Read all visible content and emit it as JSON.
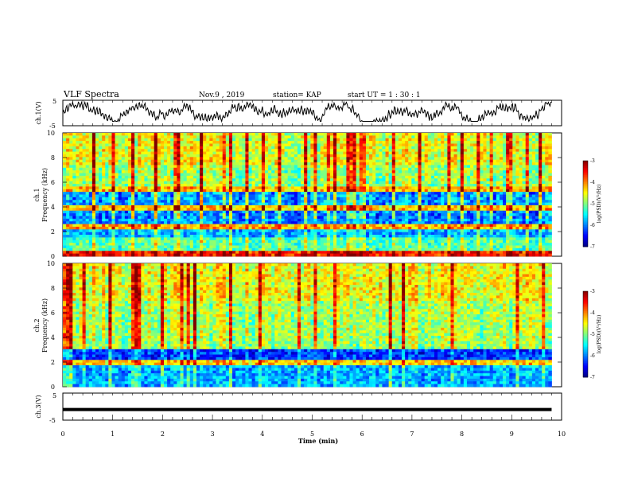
{
  "header": {
    "title": "VLF Spectra",
    "date": "Nov.9  , 2019",
    "station": "station= KAP",
    "start": "start  UT =   1 : 30 : 1"
  },
  "chart_data": [
    {
      "type": "line",
      "name": "ch1-waveform",
      "ylabel": "ch.1(V)",
      "ylim": [
        -5,
        5
      ],
      "yticks": [
        "5",
        "-5"
      ],
      "xlim": [
        0,
        9.8
      ],
      "description_level": "amplitude oscillating roughly between -3 and 4 V"
    },
    {
      "type": "heatmap",
      "name": "ch1-spectrogram",
      "ylabel_top": "ch.1",
      "ylabel": "Frequency  (kHz)",
      "ylim": [
        0,
        10
      ],
      "yticks": [
        "0",
        "2",
        "4",
        "6",
        "8",
        "10"
      ],
      "xlim": [
        0,
        9.8
      ],
      "colorbar": {
        "label": "log(PSD)(V²/Hz)",
        "range": [
          -7,
          -3
        ],
        "ticks": [
          "-3",
          "-4",
          "-5",
          "-6",
          "-7"
        ]
      },
      "bands": [
        {
          "f0": 0,
          "f1": 0.5,
          "level": -3.6
        },
        {
          "f0": 0.5,
          "f1": 1.5,
          "level": -5.2
        },
        {
          "f0": 1.5,
          "f1": 2.2,
          "level": -5.8
        },
        {
          "f0": 2.2,
          "f1": 2.6,
          "level": -4.2
        },
        {
          "f0": 2.6,
          "f1": 3.6,
          "level": -6.0
        },
        {
          "f0": 3.6,
          "f1": 4.2,
          "level": -4.3
        },
        {
          "f0": 4.2,
          "f1": 5.2,
          "level": -5.9
        },
        {
          "f0": 5.2,
          "f1": 5.6,
          "level": -4.3
        },
        {
          "f0": 5.6,
          "f1": 7.5,
          "level": -4.9
        },
        {
          "f0": 7.5,
          "f1": 10,
          "level": -4.6
        }
      ]
    },
    {
      "type": "heatmap",
      "name": "ch2-spectrogram",
      "ylabel_top": "ch.2",
      "ylabel": "Frequency  (kHz)",
      "ylim": [
        0,
        10
      ],
      "yticks": [
        "0",
        "2",
        "4",
        "6",
        "8",
        "10"
      ],
      "xlim": [
        0,
        9.8
      ],
      "colorbar": {
        "label": "log(PSD)(V²/Hz)",
        "range": [
          -7,
          -3
        ],
        "ticks": [
          "-3",
          "-4",
          "-5",
          "-6",
          "-7"
        ]
      },
      "bands": [
        {
          "f0": 0,
          "f1": 1.8,
          "level": -5.8
        },
        {
          "f0": 1.8,
          "f1": 2.1,
          "level": -4.3
        },
        {
          "f0": 2.1,
          "f1": 3.0,
          "level": -6.3
        },
        {
          "f0": 3.0,
          "f1": 3.6,
          "level": -4.9
        },
        {
          "f0": 3.6,
          "f1": 7.0,
          "level": -4.8
        },
        {
          "f0": 7.0,
          "f1": 10,
          "level": -4.5
        }
      ]
    },
    {
      "type": "line",
      "name": "ch3-waveform",
      "ylabel": "ch.3(V)",
      "ylim": [
        -5,
        5
      ],
      "yticks": [
        "5",
        "-5"
      ],
      "xlim": [
        0,
        9.8
      ],
      "constant_value": -1.2,
      "xlabel": "Time  (min)",
      "xticks": [
        "0",
        "1",
        "2",
        "3",
        "4",
        "5",
        "6",
        "7",
        "8",
        "9",
        "10"
      ],
      "xrange": [
        0,
        10
      ]
    }
  ]
}
